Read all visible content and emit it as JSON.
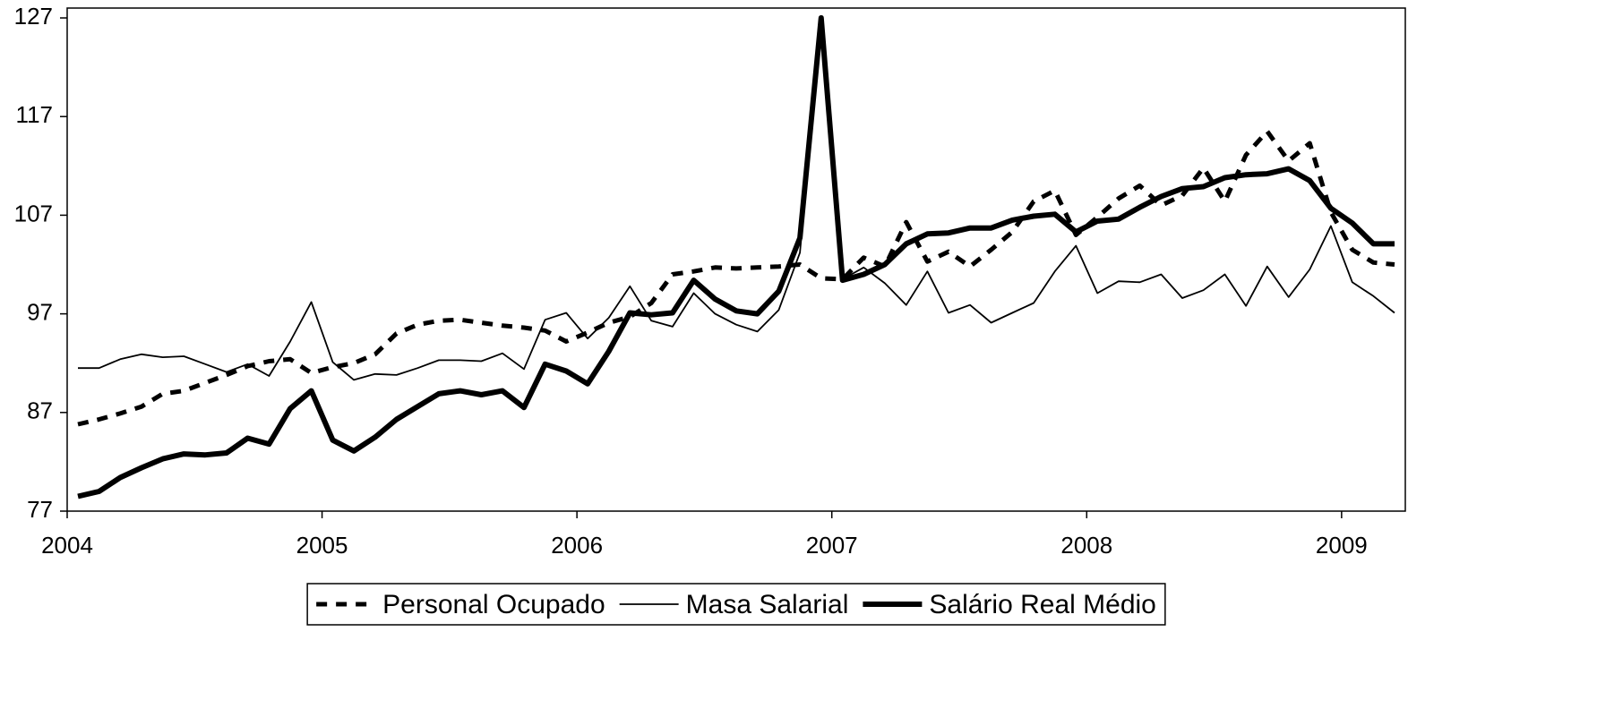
{
  "chart_data": {
    "type": "line",
    "x": [
      2004.042,
      2004.125,
      2004.208,
      2004.292,
      2004.375,
      2004.458,
      2004.542,
      2004.625,
      2004.708,
      2004.792,
      2004.875,
      2004.958,
      2005.042,
      2005.125,
      2005.208,
      2005.292,
      2005.375,
      2005.458,
      2005.542,
      2005.625,
      2005.708,
      2005.792,
      2005.875,
      2005.958,
      2006.042,
      2006.125,
      2006.208,
      2006.292,
      2006.375,
      2006.458,
      2006.542,
      2006.625,
      2006.708,
      2006.792,
      2006.875,
      2006.958,
      2007.042,
      2007.125,
      2007.208,
      2007.292,
      2007.375,
      2007.458,
      2007.542,
      2007.625,
      2007.708,
      2007.792,
      2007.875,
      2007.958,
      2008.042,
      2008.125,
      2008.208,
      2008.292,
      2008.375,
      2008.458,
      2008.542,
      2008.625,
      2008.708,
      2008.792,
      2008.875,
      2008.958,
      2009.042,
      2009.125,
      2009.208
    ],
    "series": [
      {
        "name": "Personal Ocupado",
        "color": "#000000",
        "style": "dashed",
        "values": [
          85.8,
          86.3,
          86.9,
          87.6,
          88.9,
          89.2,
          90.0,
          90.8,
          91.7,
          92.2,
          92.4,
          91.0,
          91.6,
          92.0,
          92.9,
          95.0,
          95.9,
          96.3,
          96.4,
          96.1,
          95.8,
          95.6,
          95.3,
          94.2,
          95.1,
          96.1,
          96.7,
          98.1,
          101.0,
          101.3,
          101.7,
          101.6,
          101.7,
          101.8,
          102.0,
          100.6,
          100.5,
          102.7,
          101.8,
          106.3,
          102.3,
          103.3,
          101.8,
          103.5,
          105.3,
          108.4,
          109.5,
          105.0,
          106.8,
          108.7,
          110.0,
          108.0,
          109.0,
          111.8,
          108.4,
          113.1,
          115.5,
          112.5,
          114.3,
          107.3,
          103.5,
          102.2,
          102.0
        ]
      },
      {
        "name": "Masa Salarial",
        "color": "#000000",
        "style": "thin",
        "values": [
          91.5,
          91.5,
          92.4,
          92.9,
          92.6,
          92.7,
          91.9,
          91.1,
          91.9,
          90.7,
          94.2,
          98.2,
          92.1,
          90.3,
          90.9,
          90.8,
          91.5,
          92.3,
          92.3,
          92.2,
          93.0,
          91.4,
          96.4,
          97.1,
          94.5,
          96.6,
          99.8,
          96.3,
          95.7,
          99.1,
          97.0,
          95.9,
          95.2,
          97.4,
          103.2,
          126.5,
          100.5,
          101.7,
          100.1,
          97.9,
          101.3,
          97.1,
          97.9,
          96.1,
          97.1,
          98.1,
          101.3,
          103.9,
          99.1,
          100.3,
          100.2,
          101.0,
          98.6,
          99.4,
          101.0,
          97.8,
          101.8,
          98.7,
          101.5,
          105.9,
          100.2,
          98.8,
          97.1
        ]
      },
      {
        "name": "Salário Real Médio",
        "color": "#000000",
        "style": "thick",
        "values": [
          78.5,
          79.0,
          80.4,
          81.4,
          82.3,
          82.8,
          82.7,
          82.9,
          84.4,
          83.8,
          87.4,
          89.2,
          84.2,
          83.1,
          84.5,
          86.3,
          87.6,
          88.9,
          89.2,
          88.8,
          89.2,
          87.5,
          91.9,
          91.2,
          89.9,
          93.2,
          97.1,
          96.9,
          97.1,
          100.4,
          98.5,
          97.3,
          97.0,
          99.3,
          104.7,
          127.0,
          100.4,
          101.0,
          102.0,
          104.1,
          105.1,
          105.2,
          105.7,
          105.7,
          106.5,
          106.9,
          107.1,
          105.3,
          106.4,
          106.6,
          107.8,
          108.9,
          109.7,
          109.9,
          110.8,
          111.1,
          111.2,
          111.7,
          110.5,
          107.7,
          106.2,
          104.1,
          104.1
        ]
      }
    ],
    "xlim": [
      2004,
      2009.25
    ],
    "xticks": [
      2004,
      2005,
      2006,
      2007,
      2008,
      2009
    ],
    "ylim": [
      77,
      128
    ],
    "yticks": [
      77,
      87,
      97,
      107,
      117,
      127
    ],
    "legend": "bottom"
  }
}
